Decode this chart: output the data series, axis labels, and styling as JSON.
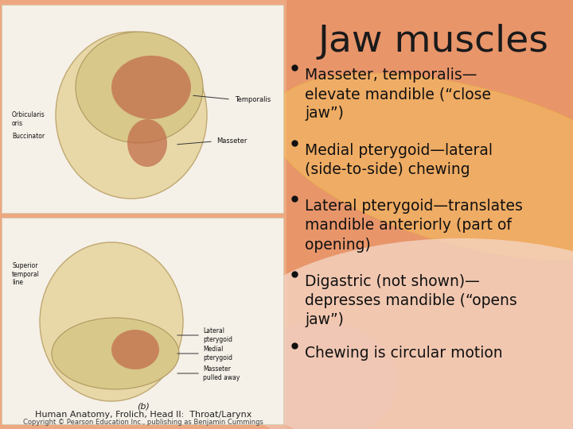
{
  "title": "Jaw muscles",
  "title_fontsize": 34,
  "title_color": "#1a1a1a",
  "bullet_points": [
    "Masseter, temporalis—\nelevate mandible (“close\njaw”)",
    "Medial pterygoid—lateral\n(side-to-side) chewing",
    "Lateral pterygoid—translates\nmandible anteriorly (part of\nopening)",
    "Digastric (not shown)—\ndepresses mandible (“opens\njaw”)",
    "Chewing is circular motion"
  ],
  "bullet_fontsize": 13.5,
  "bullet_color": "#111111",
  "right_bg_color": "#e8956a",
  "left_bg_color": "#eda882",
  "caption_line1": "(b)",
  "caption_line2": "Human Anatomy, Frolich, Head II:  Throat/Larynx",
  "caption_line3": "Copyright © Pearson Education Inc., publishing as Benjamin Cummings",
  "caption_fontsize": 8,
  "img_bg_color": "#f5f0e8",
  "img_border_color": "#ccccaa",
  "oval1_color": "#f5c8a0",
  "oval2_color": "#f5e0d0",
  "oval3_color": "#f0d8e8",
  "oval4_color": "#f8e8d8"
}
